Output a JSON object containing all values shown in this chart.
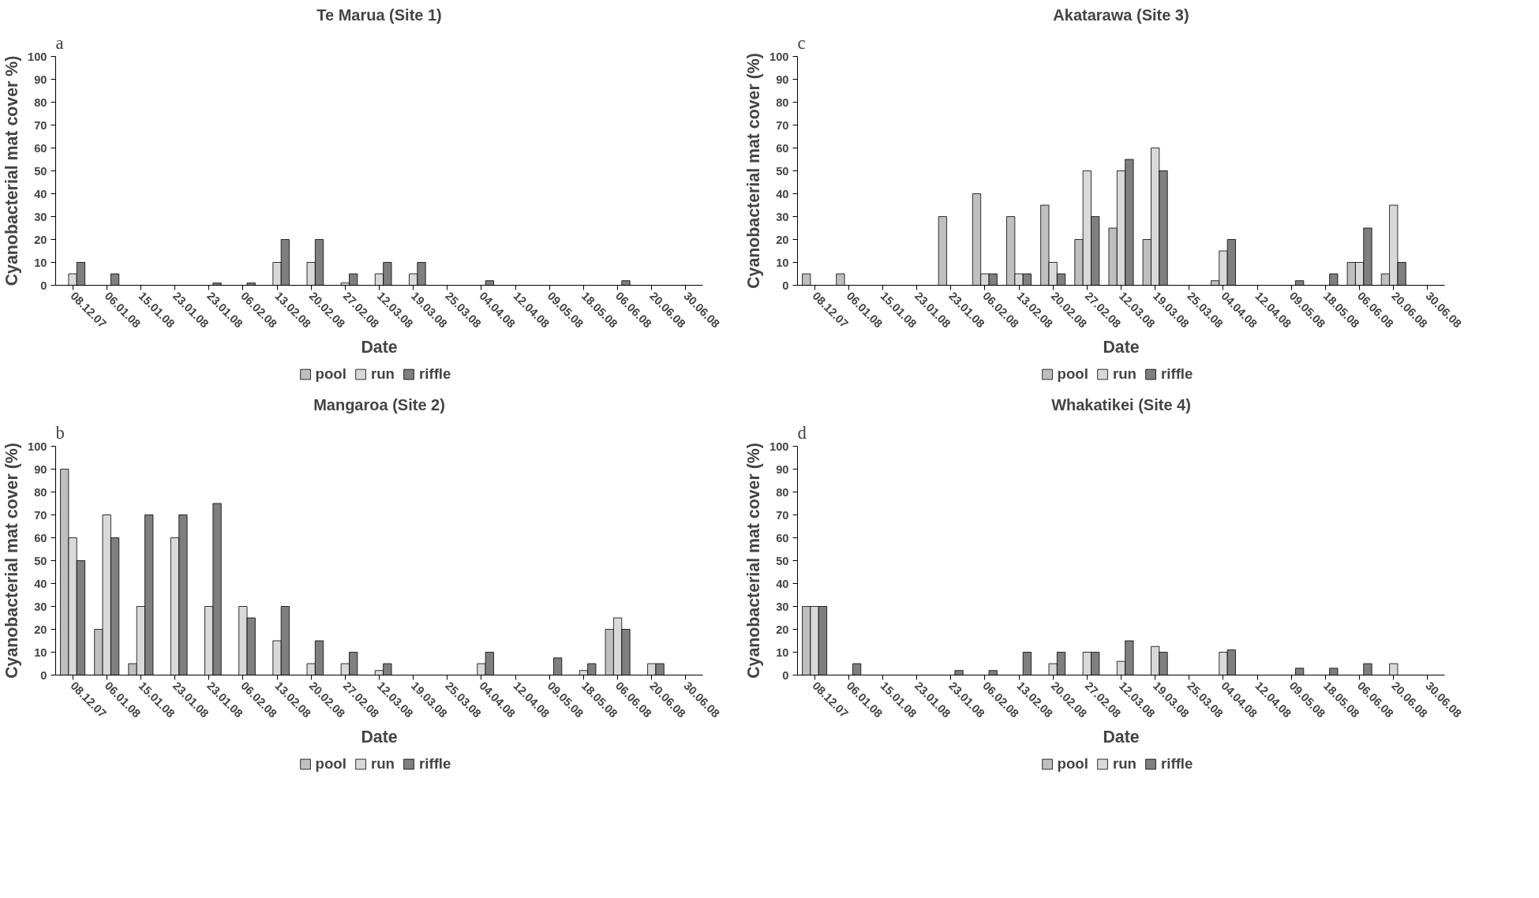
{
  "chart_data": [
    {
      "type": "bar",
      "title": "Te Marua (Site 1)",
      "xlabel": "Date",
      "ylabel": "Cyanobacterial mat cover %)",
      "annotations": [
        "a"
      ],
      "categories": [
        "08.12.07",
        "06.01.08",
        "15.01.08",
        "23.01.08",
        "23.01.08",
        "06.02.08",
        "13.02.08",
        "20.02.08",
        "27.02.08",
        "12.03.08",
        "19.03.08",
        "25.03.08",
        "04.04.08",
        "12.04.08",
        "09.05.08",
        "18.05.08",
        "06.06.08",
        "20.06.08",
        "30.06.08"
      ],
      "series": [
        {
          "name": "pool",
          "color": "#bfbfbf",
          "values": [
            null,
            null,
            null,
            null,
            null,
            null,
            null,
            null,
            null,
            null,
            null,
            null,
            null,
            null,
            null,
            null,
            null,
            null,
            null
          ]
        },
        {
          "name": "run",
          "color": "#d9d9d9",
          "values": [
            5,
            null,
            null,
            null,
            null,
            null,
            10,
            10,
            1,
            5,
            5,
            null,
            null,
            null,
            null,
            null,
            null,
            null,
            null
          ]
        },
        {
          "name": "riffle",
          "color": "#7f7f7f",
          "values": [
            10,
            5,
            null,
            null,
            1,
            1,
            20,
            20,
            5,
            10,
            10,
            null,
            2,
            null,
            null,
            null,
            2,
            null,
            null
          ]
        }
      ],
      "ylim": [
        0,
        100
      ],
      "yticks": [
        0,
        10,
        20,
        30,
        40,
        50,
        60,
        70,
        80,
        90,
        100
      ],
      "grid": false,
      "legend": "bottom"
    },
    {
      "type": "bar",
      "title": "Akatarawa (Site 3)",
      "xlabel": "Date",
      "ylabel": "Cyanobacterial mat cover (%)",
      "annotations": [
        "c"
      ],
      "categories": [
        "08.12.07",
        "06.01.08",
        "15.01.08",
        "23.01.08",
        "23.01.08",
        "06.02.08",
        "13.02.08",
        "20.02.08",
        "27.02.08",
        "12.03.08",
        "19.03.08",
        "25.03.08",
        "04.04.08",
        "12.04.08",
        "09.05.08",
        "18.05.08",
        "06.06.08",
        "20.06.08",
        "30.06.08"
      ],
      "series": [
        {
          "name": "pool",
          "color": "#bfbfbf",
          "values": [
            5,
            5,
            null,
            null,
            30,
            40,
            30,
            35,
            20,
            25,
            20,
            null,
            2,
            null,
            null,
            null,
            10,
            5,
            null
          ]
        },
        {
          "name": "run",
          "color": "#d9d9d9",
          "values": [
            null,
            null,
            null,
            null,
            null,
            5,
            5,
            10,
            50,
            50,
            60,
            null,
            15,
            null,
            null,
            null,
            10,
            35,
            null
          ]
        },
        {
          "name": "riffle",
          "color": "#7f7f7f",
          "values": [
            null,
            null,
            null,
            null,
            null,
            5,
            5,
            5,
            30,
            55,
            50,
            null,
            20,
            null,
            2,
            5,
            25,
            10,
            null
          ]
        }
      ],
      "ylim": [
        0,
        100
      ],
      "yticks": [
        0,
        10,
        20,
        30,
        40,
        50,
        60,
        70,
        80,
        90,
        100
      ],
      "grid": false,
      "legend": "bottom"
    },
    {
      "type": "bar",
      "title": "Mangaroa (Site 2)",
      "xlabel": "Date",
      "ylabel": "Cyanobacterial mat cover (%)",
      "annotations": [
        "b"
      ],
      "categories": [
        "08.12.07",
        "06.01.08",
        "15.01.08",
        "23.01.08",
        "23.01.08",
        "06.02.08",
        "13.02.08",
        "20.02.08",
        "27.02.08",
        "12.03.08",
        "19.03.08",
        "25.03.08",
        "04.04.08",
        "12.04.08",
        "09.05.08",
        "18.05.08",
        "06.06.08",
        "20.06.08",
        "30.06.08"
      ],
      "series": [
        {
          "name": "pool",
          "color": "#bfbfbf",
          "values": [
            90,
            20,
            5,
            null,
            null,
            null,
            null,
            null,
            null,
            null,
            null,
            null,
            null,
            null,
            null,
            null,
            20,
            null,
            null
          ]
        },
        {
          "name": "run",
          "color": "#d9d9d9",
          "values": [
            60,
            70,
            30,
            60,
            30,
            30,
            15,
            5,
            5,
            2,
            null,
            null,
            5,
            null,
            null,
            2,
            25,
            5,
            null
          ]
        },
        {
          "name": "riffle",
          "color": "#7f7f7f",
          "values": [
            50,
            60,
            70,
            70,
            75,
            25,
            30,
            15,
            10,
            5,
            null,
            null,
            10,
            null,
            7.5,
            5,
            20,
            5,
            null
          ]
        }
      ],
      "ylim": [
        0,
        100
      ],
      "yticks": [
        0,
        10,
        20,
        30,
        40,
        50,
        60,
        70,
        80,
        90,
        100
      ],
      "grid": false,
      "legend": "bottom"
    },
    {
      "type": "bar",
      "title": "Whakatikei (Site 4)",
      "xlabel": "Date",
      "ylabel": "Cyanobacterial mat cover (%)",
      "annotations": [
        "d"
      ],
      "categories": [
        "08.12.07",
        "06.01.08",
        "15.01.08",
        "23.01.08",
        "23.01.08",
        "06.02.08",
        "13.02.08",
        "20.02.08",
        "27.02.08",
        "12.03.08",
        "19.03.08",
        "25.03.08",
        "04.04.08",
        "12.04.08",
        "09.05.08",
        "18.05.08",
        "06.06.08",
        "20.06.08",
        "30.06.08"
      ],
      "series": [
        {
          "name": "pool",
          "color": "#bfbfbf",
          "values": [
            30,
            null,
            null,
            null,
            null,
            null,
            null,
            null,
            null,
            null,
            null,
            null,
            null,
            null,
            null,
            null,
            null,
            null,
            null
          ]
        },
        {
          "name": "run",
          "color": "#d9d9d9",
          "values": [
            30,
            null,
            null,
            null,
            null,
            null,
            null,
            5,
            10,
            6,
            12.5,
            null,
            10,
            null,
            null,
            null,
            null,
            5,
            null
          ]
        },
        {
          "name": "riffle",
          "color": "#7f7f7f",
          "values": [
            30,
            5,
            null,
            null,
            2,
            2,
            10,
            10,
            10,
            15,
            10,
            null,
            11,
            null,
            3,
            3,
            5,
            null,
            null
          ]
        }
      ],
      "ylim": [
        0,
        100
      ],
      "yticks": [
        0,
        10,
        20,
        30,
        40,
        50,
        60,
        70,
        80,
        90,
        100
      ],
      "grid": false,
      "legend": "bottom"
    }
  ]
}
